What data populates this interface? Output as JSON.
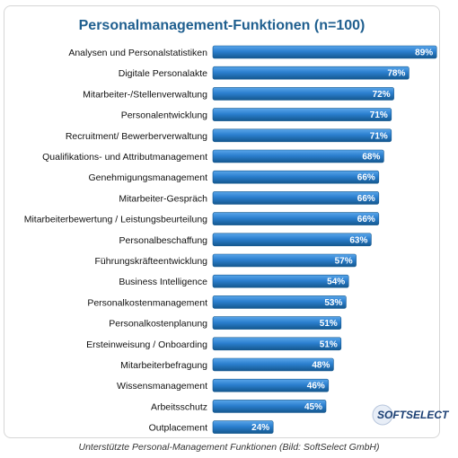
{
  "caption": "Unterstützte Personal-Management Funktionen (Bild: SoftSelect GmbH)",
  "logo": {
    "text": "SOFTSELECT"
  },
  "colors": {
    "bar": "#2b7fcf",
    "bar_dark": "#14588f",
    "title": "#1f5f8f",
    "value_text": "#ffffff"
  },
  "chart_data": {
    "type": "bar",
    "orientation": "horizontal",
    "title": "Personalmanagement-Funktionen (n=100)",
    "xlabel": "",
    "ylabel": "",
    "xlim": [
      0,
      100
    ],
    "grid": false,
    "categories": [
      "Analysen und Personalstatistiken",
      "Digitale Personalakte",
      "Mitarbeiter-/Stellenverwaltung",
      "Personalentwicklung",
      "Recruitment/ Bewerberverwaltung",
      "Qualifikations- und Attributmanagement",
      "Genehmigungsmanagement",
      "Mitarbeiter-Gespräch",
      "Mitarbeiterbewertung / Leistungsbeurteilung",
      "Personalbeschaffung",
      "Führungskräfteentwicklung",
      "Business Intelligence",
      "Personalkostenmanagement",
      "Personalkostenplanung",
      "Ersteinweisung / Onboarding",
      "Mitarbeiterbefragung",
      "Wissensmanagement",
      "Arbeitsschutz",
      "Outplacement"
    ],
    "values": [
      89,
      78,
      72,
      71,
      71,
      68,
      66,
      66,
      66,
      63,
      57,
      54,
      53,
      51,
      51,
      48,
      46,
      45,
      24
    ],
    "value_labels": [
      "89%",
      "78%",
      "72%",
      "71%",
      "71%",
      "68%",
      "66%",
      "66%",
      "66%",
      "63%",
      "57%",
      "54%",
      "53%",
      "51%",
      "51%",
      "48%",
      "46%",
      "45%",
      "24%"
    ]
  }
}
